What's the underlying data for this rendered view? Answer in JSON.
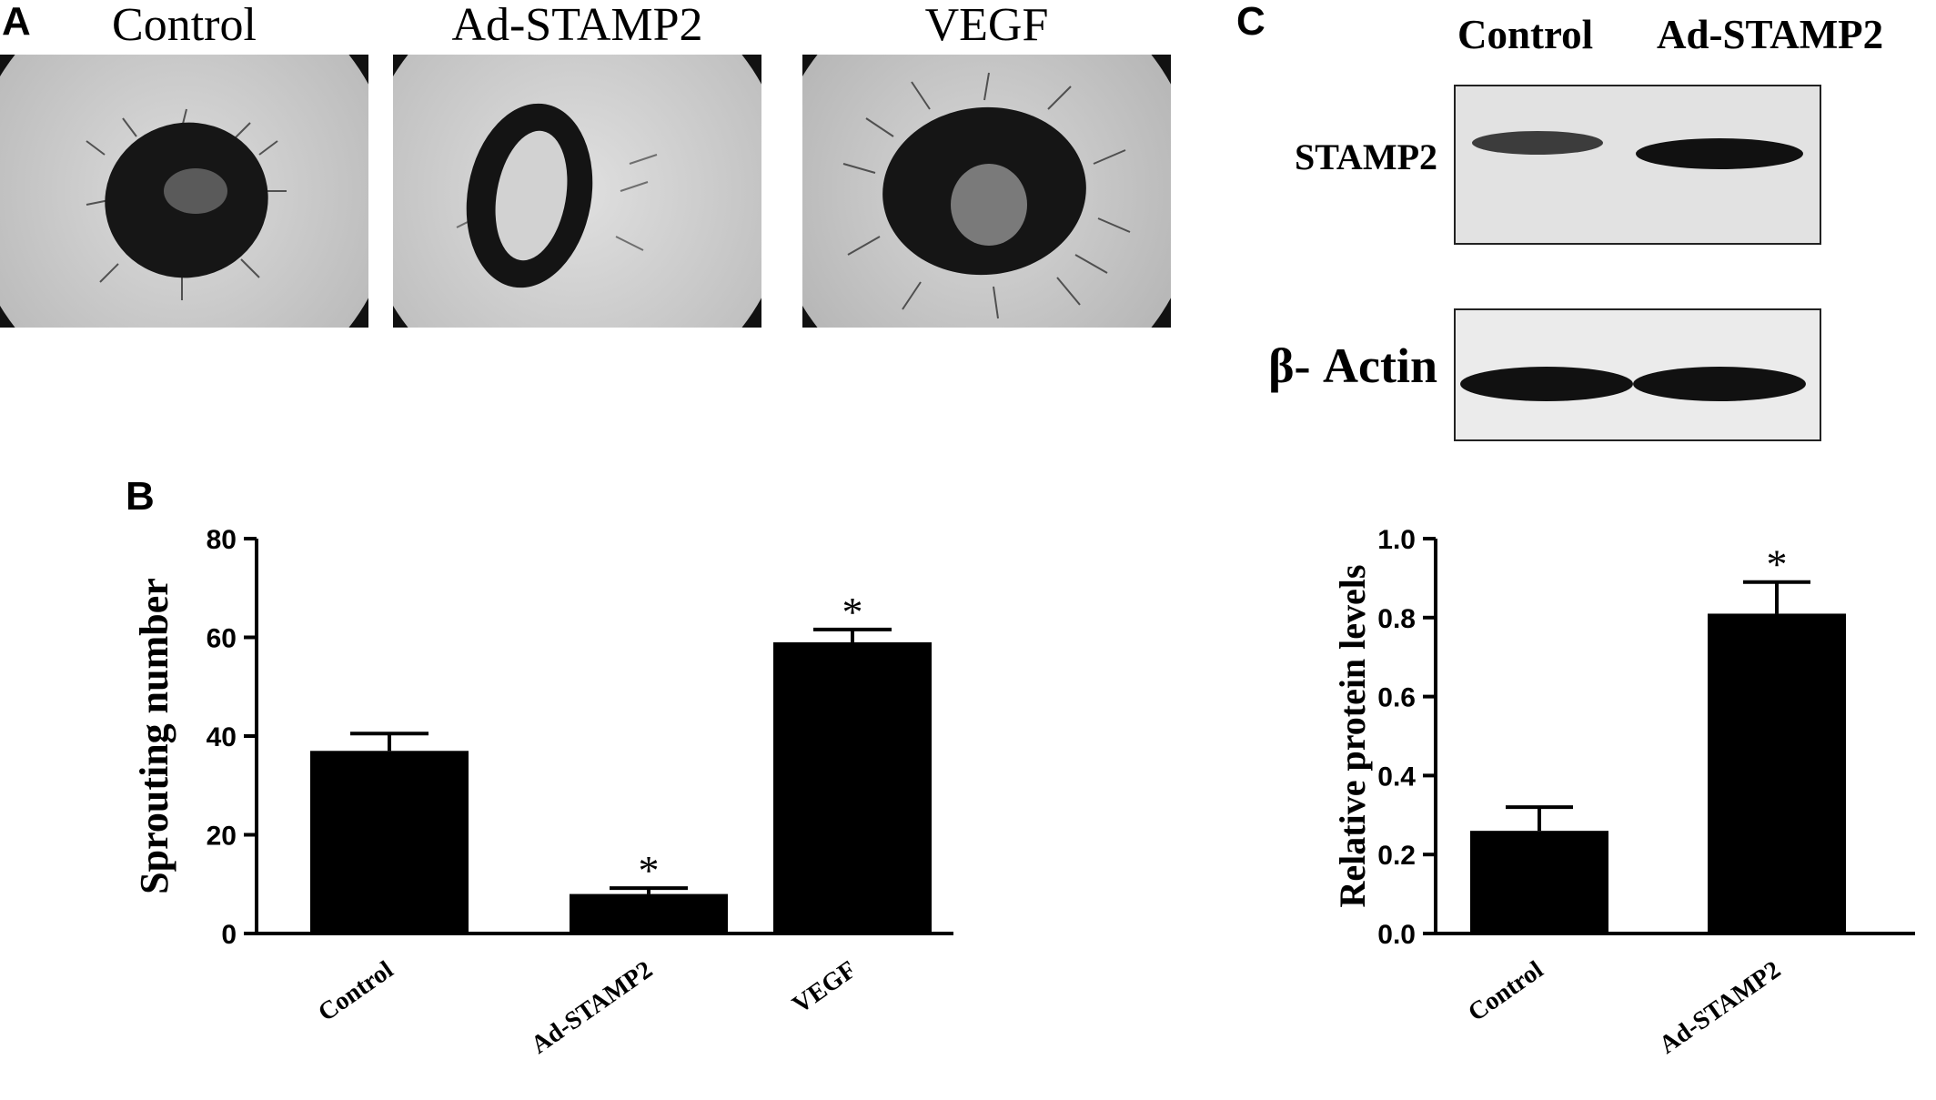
{
  "panels": {
    "a": {
      "letter": "A",
      "images": [
        {
          "label": "Control"
        },
        {
          "label": "Ad-STAMP2"
        },
        {
          "label": "VEGF"
        }
      ]
    },
    "b": {
      "letter": "B"
    },
    "c": {
      "letter": "C",
      "blot": {
        "columns": [
          "Control",
          "Ad-STAMP2"
        ],
        "rows": [
          "STAMP2",
          "β- Actin"
        ]
      }
    }
  },
  "chart_data": [
    {
      "id": "B",
      "type": "bar",
      "categories": [
        "Control",
        "Ad-STAMP2",
        "VEGF"
      ],
      "values": [
        37,
        8,
        59
      ],
      "errors": [
        3.5,
        1.2,
        2.6
      ],
      "significance": [
        "",
        "*",
        "*"
      ],
      "ylabel": "Sprouting number",
      "ylim": [
        0,
        80
      ],
      "yticks": [
        0,
        20,
        40,
        60,
        80
      ],
      "grid": false
    },
    {
      "id": "C",
      "type": "bar",
      "categories": [
        "Control",
        "Ad-STAMP2"
      ],
      "values": [
        0.26,
        0.81
      ],
      "errors": [
        0.06,
        0.08
      ],
      "significance": [
        "",
        "*"
      ],
      "ylabel": "Relative protein levels",
      "ylim": [
        0,
        1.0
      ],
      "yticks": [
        "0.0",
        "0.2",
        "0.4",
        "0.6",
        "0.8",
        "1.0"
      ],
      "grid": false
    }
  ]
}
